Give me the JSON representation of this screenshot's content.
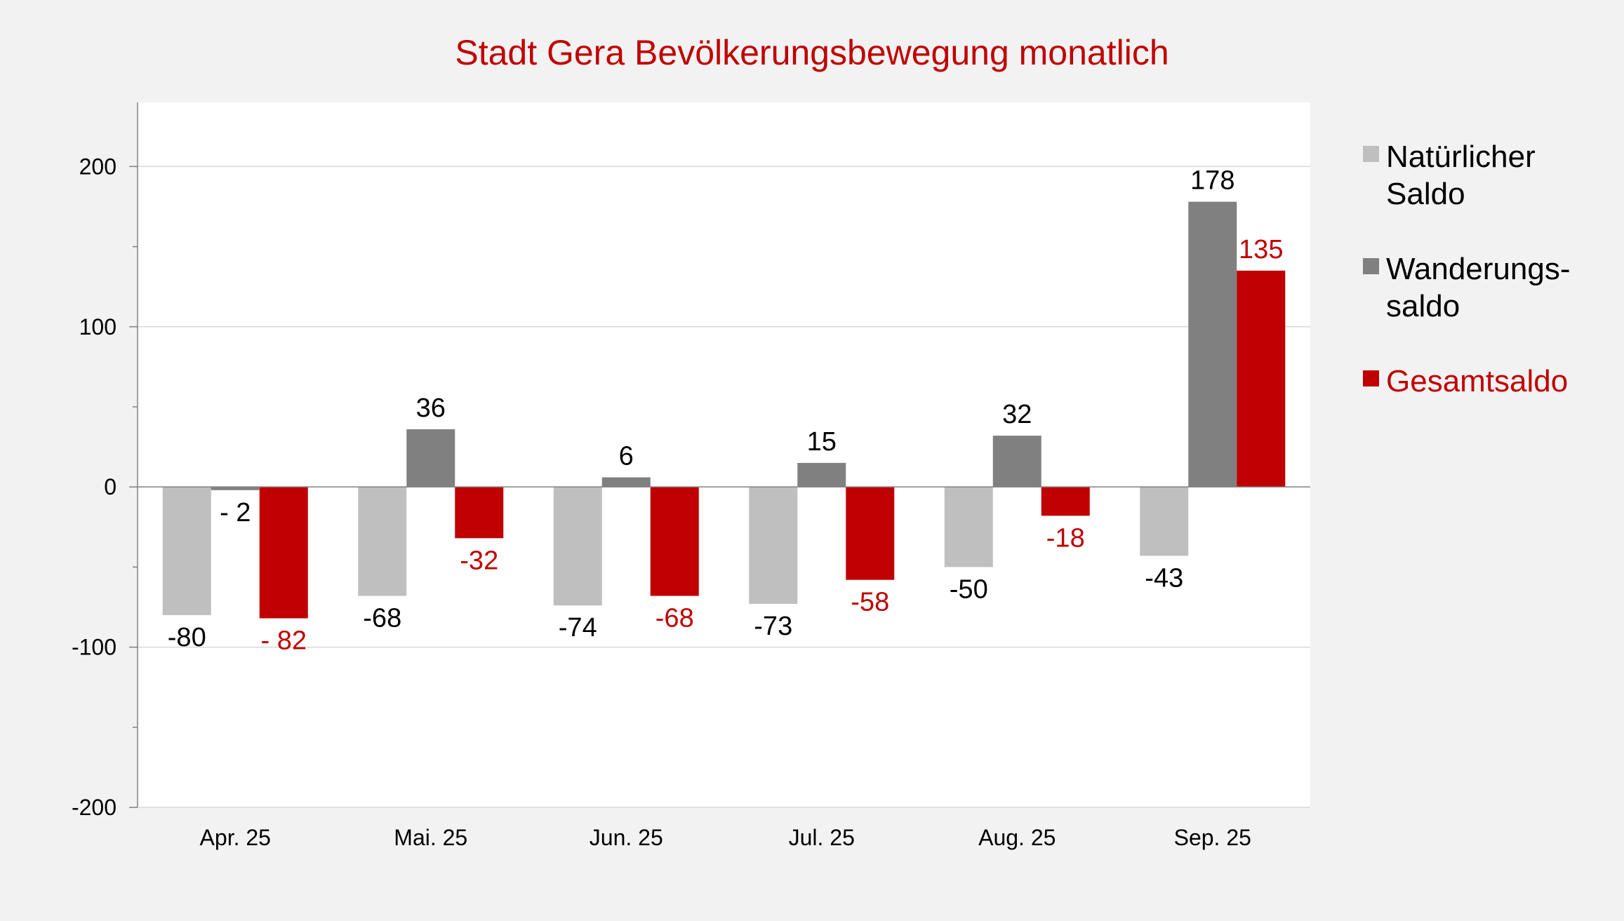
{
  "chart_data": {
    "type": "bar",
    "title": "Stadt Gera Bevölkerungsbewegung monatlich",
    "xlabel": "",
    "ylabel": "",
    "ylim": [
      -200,
      240
    ],
    "yticks": [
      200,
      100,
      0,
      -100,
      -200
    ],
    "ytick_labels": [
      "200",
      "100",
      "0",
      "-100",
      "-200"
    ],
    "minor_tick_step": 50,
    "grid": true,
    "legend_position": "right",
    "categories": [
      "Apr. 25",
      "Mai. 25",
      "Jun. 25",
      "Jul. 25",
      "Aug. 25",
      "Sep. 25"
    ],
    "series": [
      {
        "name": "Natürlicher Saldo",
        "legend_lines": [
          "Natürlicher",
          "Saldo"
        ],
        "color": "#bfbfbf",
        "label_color": "#000000",
        "values": [
          -80,
          -68,
          -74,
          -73,
          -50,
          -43
        ],
        "labels": [
          "-80",
          "-68",
          "-74",
          "-73",
          "-50",
          "-43"
        ]
      },
      {
        "name": "Wanderungssaldo",
        "legend_lines": [
          "Wanderungs-",
          "saldo"
        ],
        "color": "#808080",
        "label_color": "#000000",
        "values": [
          -2,
          36,
          6,
          15,
          32,
          178
        ],
        "labels": [
          "- 2",
          "36",
          "6",
          "15",
          "32",
          "178"
        ]
      },
      {
        "name": "Gesamtsaldo",
        "legend_lines": [
          "Gesamtsaldo"
        ],
        "color": "#c00000",
        "label_color": "#c00000",
        "values": [
          -82,
          -32,
          -68,
          -58,
          -18,
          135
        ],
        "labels": [
          "- 82",
          "-32",
          "-68",
          "-58",
          "-18",
          "135"
        ]
      }
    ]
  }
}
